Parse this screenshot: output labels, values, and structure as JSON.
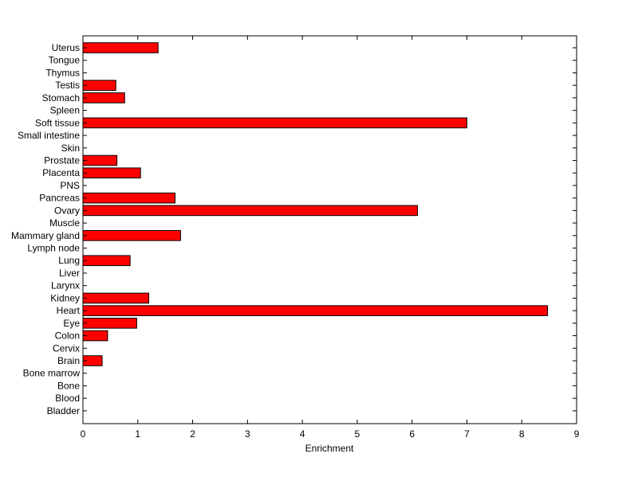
{
  "chart_data": {
    "type": "bar",
    "orientation": "horizontal",
    "categories": [
      "Uterus",
      "Tongue",
      "Thymus",
      "Testis",
      "Stomach",
      "Spleen",
      "Soft tissue",
      "Small intestine",
      "Skin",
      "Prostate",
      "Placenta",
      "PNS",
      "Pancreas",
      "Ovary",
      "Muscle",
      "Mammary gland",
      "Lymph node",
      "Lung",
      "Liver",
      "Larynx",
      "Kidney",
      "Heart",
      "Eye",
      "Colon",
      "Cervix",
      "Brain",
      "Bone marrow",
      "Bone",
      "Blood",
      "Bladder"
    ],
    "values": [
      1.37,
      0,
      0,
      0.6,
      0.76,
      0,
      7.0,
      0,
      0,
      0.62,
      1.05,
      0,
      1.68,
      6.1,
      0,
      1.78,
      0,
      0.86,
      0,
      0,
      1.2,
      8.47,
      0.98,
      0.45,
      0,
      0.35,
      0,
      0,
      0,
      0
    ],
    "xlabel": "Enrichment",
    "ylabel": "",
    "xlim": [
      0,
      9
    ],
    "xticks": [
      "0",
      "1",
      "2",
      "3",
      "4",
      "5",
      "6",
      "7",
      "8",
      "9"
    ],
    "grid": false,
    "bar_color": "#ff0000"
  }
}
